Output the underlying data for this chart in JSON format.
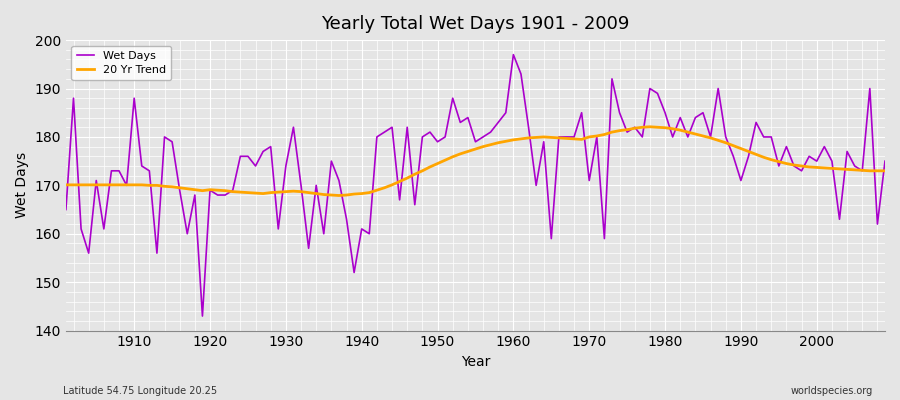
{
  "title": "Yearly Total Wet Days 1901 - 2009",
  "xlabel": "Year",
  "ylabel": "Wet Days",
  "ylim": [
    140,
    200
  ],
  "xlim": [
    1901,
    2009
  ],
  "yticks": [
    140,
    150,
    160,
    170,
    180,
    190,
    200
  ],
  "xticks": [
    1910,
    1920,
    1930,
    1940,
    1950,
    1960,
    1970,
    1980,
    1990,
    2000
  ],
  "wet_days_color": "#AA00CC",
  "trend_color": "#FFA500",
  "background_color": "#E5E5E5",
  "grid_color": "#FFFFFF",
  "subtitle_left": "Latitude 54.75 Longitude 20.25",
  "subtitle_right": "worldspecies.org",
  "legend_labels": [
    "Wet Days",
    "20 Yr Trend"
  ],
  "years": [
    1901,
    1902,
    1903,
    1904,
    1905,
    1906,
    1907,
    1908,
    1909,
    1910,
    1911,
    1912,
    1913,
    1914,
    1915,
    1916,
    1917,
    1918,
    1919,
    1920,
    1921,
    1922,
    1923,
    1924,
    1925,
    1926,
    1927,
    1928,
    1929,
    1930,
    1931,
    1932,
    1933,
    1934,
    1935,
    1936,
    1937,
    1938,
    1939,
    1940,
    1941,
    1942,
    1943,
    1944,
    1945,
    1946,
    1947,
    1948,
    1949,
    1950,
    1951,
    1952,
    1953,
    1954,
    1955,
    1956,
    1957,
    1958,
    1959,
    1960,
    1961,
    1962,
    1963,
    1964,
    1965,
    1966,
    1967,
    1968,
    1969,
    1970,
    1971,
    1972,
    1973,
    1974,
    1975,
    1976,
    1977,
    1978,
    1979,
    1980,
    1981,
    1982,
    1983,
    1984,
    1985,
    1986,
    1987,
    1988,
    1989,
    1990,
    1991,
    1992,
    1993,
    1994,
    1995,
    1996,
    1997,
    1998,
    1999,
    2000,
    2001,
    2002,
    2003,
    2004,
    2005,
    2006,
    2007,
    2008,
    2009
  ],
  "wet_days": [
    165,
    188,
    161,
    156,
    171,
    161,
    173,
    173,
    170,
    188,
    174,
    173,
    156,
    180,
    179,
    169,
    160,
    168,
    143,
    169,
    168,
    168,
    169,
    176,
    176,
    174,
    177,
    178,
    161,
    174,
    182,
    170,
    157,
    170,
    160,
    175,
    171,
    163,
    152,
    161,
    160,
    180,
    181,
    182,
    167,
    182,
    166,
    180,
    181,
    179,
    180,
    188,
    183,
    184,
    179,
    180,
    181,
    183,
    185,
    197,
    193,
    182,
    170,
    179,
    159,
    180,
    180,
    180,
    185,
    171,
    180,
    159,
    192,
    185,
    181,
    182,
    180,
    190,
    189,
    185,
    180,
    184,
    180,
    184,
    185,
    180,
    190,
    180,
    176,
    171,
    176,
    183,
    180,
    180,
    174,
    178,
    174,
    173,
    176,
    175,
    178,
    175,
    163,
    177,
    174,
    173,
    190,
    162,
    175
  ],
  "trend_values": [
    170.1,
    170.1,
    170.1,
    170.1,
    170.1,
    170.1,
    170.1,
    170.1,
    170.1,
    170.1,
    170.1,
    170.0,
    170.0,
    169.8,
    169.7,
    169.5,
    169.3,
    169.1,
    168.9,
    169.1,
    169.0,
    168.9,
    168.7,
    168.6,
    168.5,
    168.4,
    168.3,
    168.5,
    168.6,
    168.7,
    168.8,
    168.7,
    168.5,
    168.3,
    168.1,
    168.0,
    167.9,
    168.0,
    168.2,
    168.3,
    168.5,
    169.0,
    169.5,
    170.1,
    170.8,
    171.5,
    172.3,
    173.0,
    173.8,
    174.5,
    175.2,
    175.9,
    176.5,
    177.0,
    177.5,
    178.0,
    178.4,
    178.8,
    179.1,
    179.4,
    179.6,
    179.8,
    179.9,
    180.0,
    179.9,
    179.8,
    179.7,
    179.6,
    179.5,
    180.0,
    180.2,
    180.5,
    181.0,
    181.3,
    181.5,
    181.8,
    182.0,
    182.1,
    182.0,
    181.9,
    181.7,
    181.4,
    181.0,
    180.6,
    180.2,
    179.8,
    179.3,
    178.8,
    178.2,
    177.6,
    177.0,
    176.4,
    175.8,
    175.3,
    174.9,
    174.5,
    174.2,
    174.0,
    173.8,
    173.7,
    173.6,
    173.5,
    173.4,
    173.3,
    173.2,
    173.1,
    173.0,
    173.0,
    173.0
  ]
}
